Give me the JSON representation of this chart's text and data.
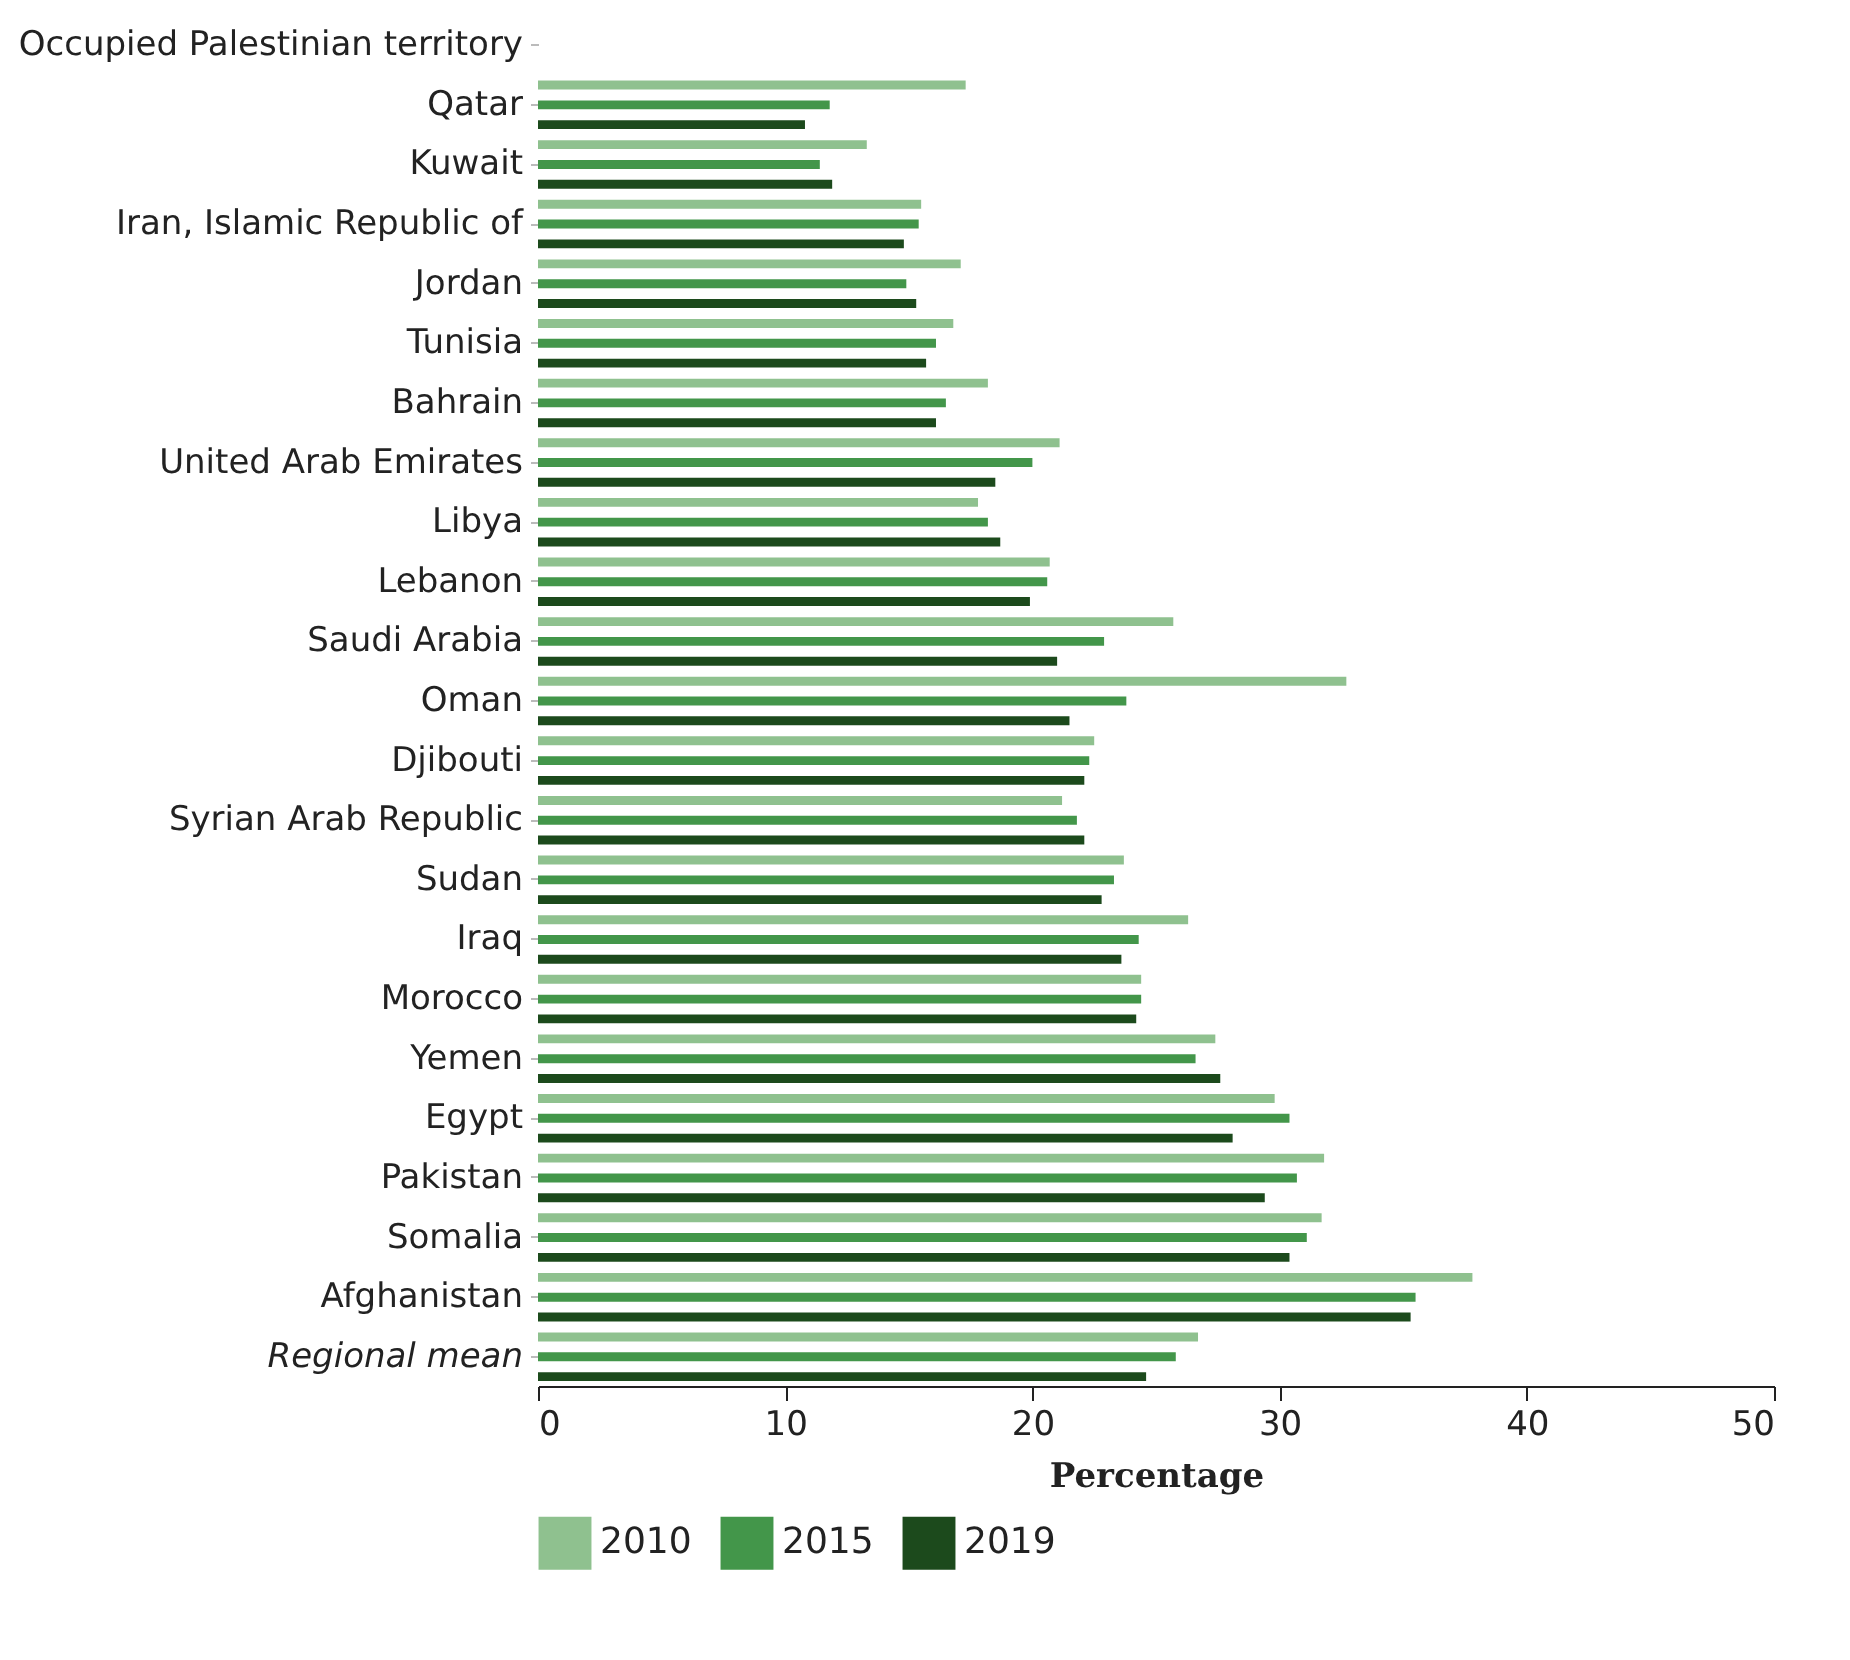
{
  "chart_data": {
    "type": "bar",
    "orientation": "horizontal",
    "xlabel": "Percentage",
    "categories": [
      "Occupied Palestinian territory",
      "Qatar",
      "Kuwait",
      "Iran, Islamic Republic of",
      "Jordan",
      "Tunisia",
      "Bahrain",
      "United Arab Emirates",
      "Libya",
      "Lebanon",
      "Saudi Arabia",
      "Oman",
      "Djibouti",
      "Syrian Arab Republic",
      "Sudan",
      "Iraq",
      "Morocco",
      "Yemen",
      "Egypt",
      "Pakistan",
      "Somalia",
      "Afghanistan",
      "Regional mean"
    ],
    "series": [
      {
        "name": "2010",
        "color": "#8fc18f",
        "values": [
          null,
          17.3,
          13.3,
          15.5,
          17.1,
          16.8,
          18.2,
          21.1,
          17.8,
          20.7,
          25.7,
          32.7,
          22.5,
          21.2,
          23.7,
          26.3,
          24.4,
          27.4,
          29.8,
          31.8,
          31.7,
          37.8,
          26.7
        ]
      },
      {
        "name": "2015",
        "color": "#43964a",
        "values": [
          null,
          11.8,
          11.4,
          15.4,
          14.9,
          16.1,
          16.5,
          20.0,
          18.2,
          20.6,
          22.9,
          23.8,
          22.3,
          21.8,
          23.3,
          24.3,
          24.4,
          26.6,
          30.4,
          30.7,
          31.1,
          35.5,
          25.8
        ]
      },
      {
        "name": "2019",
        "color": "#1c4a1c",
        "values": [
          null,
          10.8,
          11.9,
          14.8,
          15.3,
          15.7,
          16.1,
          18.5,
          18.7,
          19.9,
          21.0,
          21.5,
          22.1,
          22.1,
          22.8,
          23.6,
          24.2,
          27.6,
          28.1,
          29.4,
          30.4,
          35.3,
          24.6
        ]
      }
    ],
    "xlim": [
      0,
      50
    ],
    "xticks": [
      0,
      10,
      20,
      30,
      40,
      50
    ],
    "grid": false,
    "legend": "bottom"
  }
}
